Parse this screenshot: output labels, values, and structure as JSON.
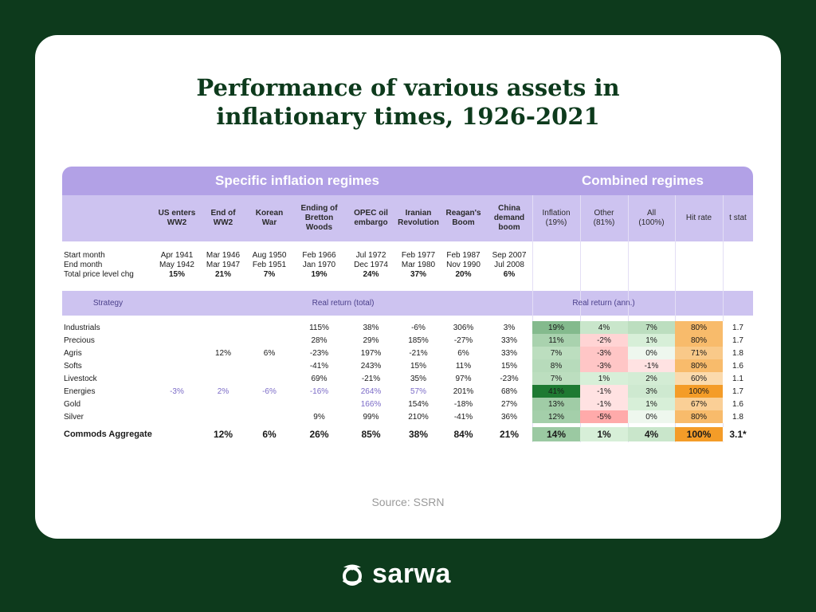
{
  "title": "Performance of various assets in\ninflationary times, 1926-2021",
  "source": "Source: SSRN",
  "brand": "sarwa",
  "colors": {
    "background": "#0d3a1c",
    "band": "#b2a1e6",
    "header": "#cdc3f0"
  },
  "chart_data": {
    "type": "table",
    "group_headers": [
      "Specific inflation regimes",
      "Combined regimes"
    ],
    "regimes": [
      {
        "name": "US enters\nWW2",
        "start": "Apr 1941",
        "end": "May 1942",
        "price_chg": "15%"
      },
      {
        "name": "End of\nWW2",
        "start": "Mar 1946",
        "end": "Mar 1947",
        "price_chg": "21%"
      },
      {
        "name": "Korean\nWar",
        "start": "Aug 1950",
        "end": "Feb 1951",
        "price_chg": "7%"
      },
      {
        "name": "Ending of\nBretton\nWoods",
        "start": "Feb 1966",
        "end": "Jan 1970",
        "price_chg": "19%"
      },
      {
        "name": "OPEC oil\nembargo",
        "start": "Jul 1972",
        "end": "Dec 1974",
        "price_chg": "24%"
      },
      {
        "name": "Iranian\nRevolution",
        "start": "Feb 1977",
        "end": "Mar 1980",
        "price_chg": "37%"
      },
      {
        "name": "Reagan's\nBoom",
        "start": "Feb 1987",
        "end": "Nov 1990",
        "price_chg": "20%"
      },
      {
        "name": "China\ndemand\nboom",
        "start": "Sep 2007",
        "end": "Jul 2008",
        "price_chg": "6%"
      }
    ],
    "combined_columns": [
      "Inflation\n(19%)",
      "Other\n(81%)",
      "All\n(100%)",
      "Hit rate",
      "t stat"
    ],
    "info_labels": [
      "Start month",
      "End month",
      "Total price level chg"
    ],
    "section_labels": [
      "Strategy",
      "Real return (total)",
      "Real return (ann.)"
    ],
    "rows": [
      {
        "strategy": "Industrials",
        "values": [
          "",
          "",
          "",
          "115%",
          "38%",
          "-6%",
          "306%",
          "3%"
        ],
        "combined": [
          "19%",
          "4%",
          "7%",
          "80%",
          "1.7"
        ]
      },
      {
        "strategy": "Precious",
        "values": [
          "",
          "",
          "",
          "28%",
          "29%",
          "185%",
          "-27%",
          "33%"
        ],
        "combined": [
          "11%",
          "-2%",
          "1%",
          "80%",
          "1.7"
        ]
      },
      {
        "strategy": "Agris",
        "values": [
          "",
          "12%",
          "6%",
          "-23%",
          "197%",
          "-21%",
          "6%",
          "33%"
        ],
        "combined": [
          "7%",
          "-3%",
          "0%",
          "71%",
          "1.8"
        ]
      },
      {
        "strategy": "Softs",
        "values": [
          "",
          "",
          "",
          "-41%",
          "243%",
          "15%",
          "11%",
          "15%"
        ],
        "combined": [
          "8%",
          "-3%",
          "-1%",
          "80%",
          "1.6"
        ]
      },
      {
        "strategy": "Livestock",
        "values": [
          "",
          "",
          "",
          "69%",
          "-21%",
          "35%",
          "97%",
          "-23%"
        ],
        "combined": [
          "7%",
          "1%",
          "2%",
          "60%",
          "1.1"
        ]
      },
      {
        "strategy": "Energies",
        "values": [
          "-3%",
          "2%",
          "-6%",
          "-16%",
          "264%",
          "57%",
          "201%",
          "68%"
        ],
        "combined": [
          "41%",
          "-1%",
          "3%",
          "100%",
          "1.7"
        ]
      },
      {
        "strategy": "Gold",
        "values": [
          "",
          "",
          "",
          "",
          "166%",
          "154%",
          "-18%",
          "27%"
        ],
        "combined": [
          "13%",
          "-1%",
          "1%",
          "67%",
          "1.6"
        ]
      },
      {
        "strategy": "Silver",
        "values": [
          "",
          "",
          "",
          "9%",
          "99%",
          "210%",
          "-41%",
          "36%"
        ],
        "combined": [
          "12%",
          "-5%",
          "0%",
          "80%",
          "1.8"
        ]
      }
    ],
    "aggregate": {
      "strategy": "Commods Aggregate",
      "values": [
        "",
        "12%",
        "6%",
        "26%",
        "85%",
        "38%",
        "84%",
        "21%"
      ],
      "combined": [
        "14%",
        "1%",
        "4%",
        "100%",
        "3.1*"
      ]
    }
  }
}
